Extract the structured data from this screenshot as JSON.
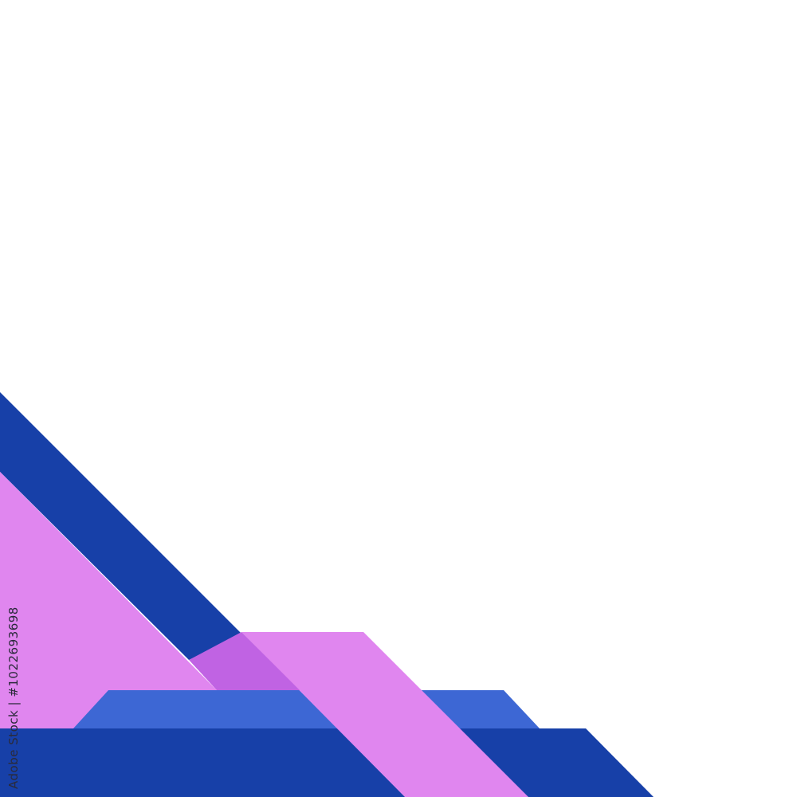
{
  "watermark": {
    "text": "Adobe Stock | #1022693698"
  },
  "colors": {
    "background": "#ffffff",
    "dark_blue": "#1740a8",
    "mid_blue": "#3d67d4",
    "pink": "#e086ef",
    "purple_overlap": "#c063e3"
  }
}
